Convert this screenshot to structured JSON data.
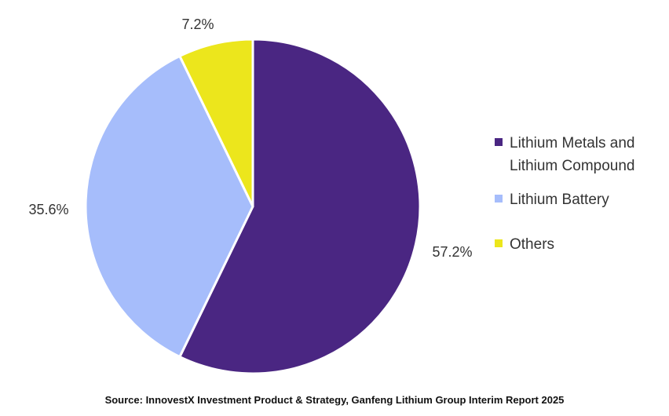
{
  "chart_data": {
    "type": "pie",
    "slices": [
      {
        "label": "Lithium Metals and Lithium Compound",
        "value": 57.2,
        "display": "57.2%",
        "color": "#4a2682"
      },
      {
        "label": "Lithium Battery",
        "value": 35.6,
        "display": "35.6%",
        "color": "#a6bdfb"
      },
      {
        "label": "Others",
        "value": 7.2,
        "display": "7.2%",
        "color": "#ece61c"
      }
    ],
    "legend_position": "right",
    "start_angle": "top, clockwise"
  },
  "legend": {
    "items": [
      {
        "line1": "Lithium Metals and",
        "line2": "Lithium Compound"
      },
      {
        "line1": "Lithium Battery"
      },
      {
        "line1": "Others"
      }
    ]
  },
  "source": "Source: InnovestX Investment Product & Strategy, Ganfeng Lithium Group Interim Report 2025"
}
